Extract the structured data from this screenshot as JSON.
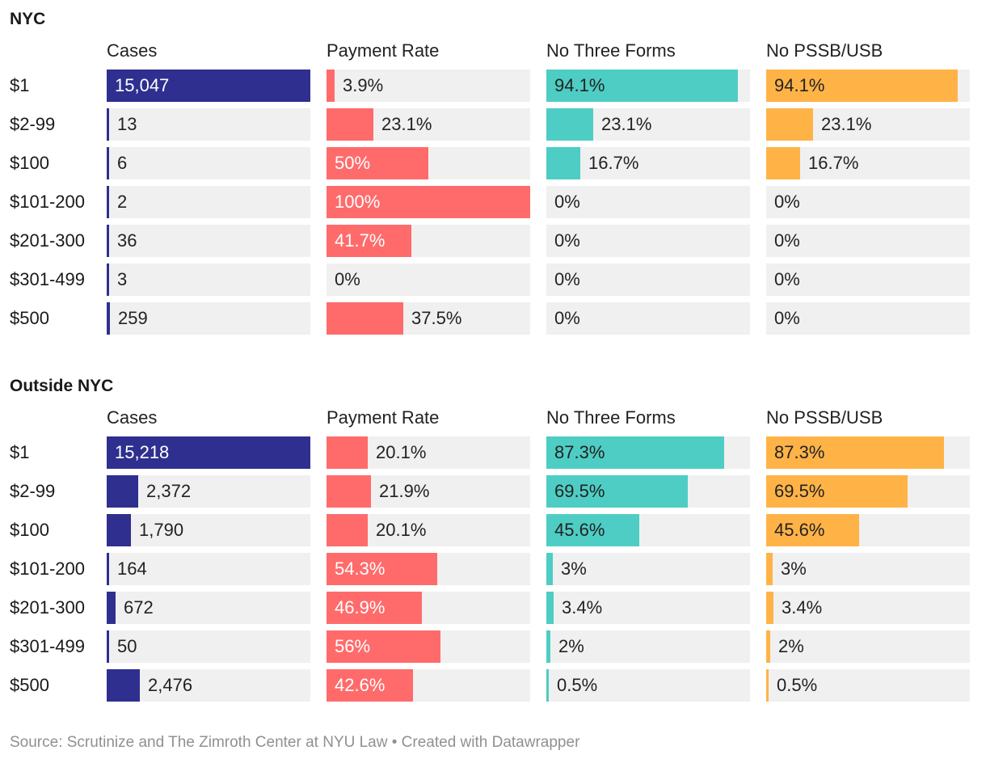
{
  "colors": {
    "cases": "#2e2f8f",
    "payment_rate": "#ff6b6b",
    "no_three_forms": "#4ecdc4",
    "no_pssb_usb": "#ffb347"
  },
  "source_note": "Source: Scrutinize and The Zimroth Center at NYU Law • Created with Datawrapper",
  "chart_data": [
    {
      "type": "bar",
      "title": "NYC",
      "categories": [
        "$1",
        "$2-99",
        "$100",
        "$101-200",
        "$201-300",
        "$301-499",
        "$500"
      ],
      "series": [
        {
          "name": "Cases",
          "values": [
            15047,
            13,
            6,
            2,
            36,
            3,
            259
          ],
          "labels": [
            "15,047",
            "13",
            "6",
            "2",
            "36",
            "3",
            "259"
          ]
        },
        {
          "name": "Payment Rate",
          "values": [
            3.9,
            23.1,
            50,
            100,
            41.7,
            0,
            37.5
          ],
          "labels": [
            "3.9%",
            "23.1%",
            "50%",
            "100%",
            "41.7%",
            "0%",
            "37.5%"
          ]
        },
        {
          "name": "No Three Forms",
          "values": [
            94.1,
            23.1,
            16.7,
            0,
            0,
            0,
            0
          ],
          "labels": [
            "94.1%",
            "23.1%",
            "16.7%",
            "0%",
            "0%",
            "0%",
            "0%"
          ]
        },
        {
          "name": "No PSSB/USB",
          "values": [
            94.1,
            23.1,
            16.7,
            0,
            0,
            0,
            0
          ],
          "labels": [
            "94.1%",
            "23.1%",
            "16.7%",
            "0%",
            "0%",
            "0%",
            "0%"
          ]
        }
      ]
    },
    {
      "type": "bar",
      "title": "Outside NYC",
      "categories": [
        "$1",
        "$2-99",
        "$100",
        "$101-200",
        "$201-300",
        "$301-499",
        "$500"
      ],
      "series": [
        {
          "name": "Cases",
          "values": [
            15218,
            2372,
            1790,
            164,
            672,
            50,
            2476
          ],
          "labels": [
            "15,218",
            "2,372",
            "1,790",
            "164",
            "672",
            "50",
            "2,476"
          ]
        },
        {
          "name": "Payment Rate",
          "values": [
            20.1,
            21.9,
            20.1,
            54.3,
            46.9,
            56,
            42.6
          ],
          "labels": [
            "20.1%",
            "21.9%",
            "20.1%",
            "54.3%",
            "46.9%",
            "56%",
            "42.6%"
          ]
        },
        {
          "name": "No Three Forms",
          "values": [
            87.3,
            69.5,
            45.6,
            3,
            3.4,
            2,
            0.5
          ],
          "labels": [
            "87.3%",
            "69.5%",
            "45.6%",
            "3%",
            "3.4%",
            "2%",
            "0.5%"
          ]
        },
        {
          "name": "No PSSB/USB",
          "values": [
            87.3,
            69.5,
            45.6,
            3,
            3.4,
            2,
            0.5
          ],
          "labels": [
            "87.3%",
            "69.5%",
            "45.6%",
            "3%",
            "3.4%",
            "2%",
            "0.5%"
          ]
        }
      ]
    }
  ]
}
